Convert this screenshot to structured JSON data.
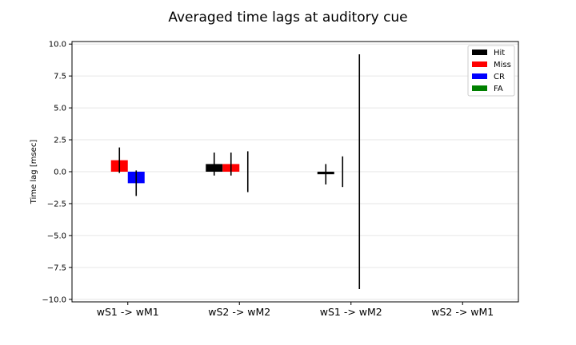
{
  "chart_data": {
    "type": "bar",
    "title": "Averaged time lags at auditory cue",
    "xlabel": "",
    "ylabel": "Time lag [msec]",
    "categories": [
      "wS1 -> wM1",
      "wS2 -> wM2",
      "wS1 -> wM2",
      "wS2 -> wM1"
    ],
    "ylim": [
      -10.2,
      10.2
    ],
    "yticks": [
      10.0,
      7.5,
      5.0,
      2.5,
      0.0,
      -2.5,
      -5.0,
      -7.5,
      -10.0
    ],
    "ytick_labels": [
      "10.0",
      "7.5",
      "5.0",
      "2.5",
      "0.0",
      "−2.5",
      "−5.0",
      "−7.5",
      "−10.0"
    ],
    "grid": "horizontal",
    "legend_position": "top-right",
    "series": [
      {
        "name": "Hit",
        "color": "#000000",
        "values": [
          0.0,
          0.6,
          -0.2,
          null
        ],
        "errors": [
          0.0,
          0.9,
          0.8,
          null
        ]
      },
      {
        "name": "Miss",
        "color": "#ff0000",
        "values": [
          0.9,
          0.6,
          0.0,
          null
        ],
        "errors": [
          1.0,
          0.9,
          1.2,
          null
        ]
      },
      {
        "name": "CR",
        "color": "#0000ff",
        "values": [
          -0.9,
          0.0,
          0.0,
          null
        ],
        "errors": [
          1.0,
          1.6,
          9.2,
          null
        ]
      },
      {
        "name": "FA",
        "color": "#008000",
        "values": [
          null,
          null,
          null,
          null
        ],
        "errors": [
          null,
          null,
          null,
          null
        ]
      }
    ]
  }
}
